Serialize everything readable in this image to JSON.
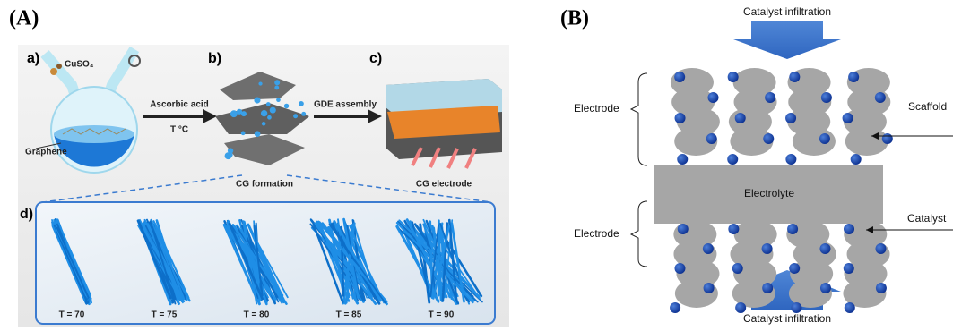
{
  "panel_a": {
    "label": "(A)",
    "steps": [
      {
        "label": "a)",
        "reagent": "CuSO₄",
        "material": "Graphene"
      },
      {
        "label": "b)",
        "caption": "CG formation"
      },
      {
        "label": "c)",
        "caption": "CG electrode"
      }
    ],
    "arrows": [
      {
        "top": "Ascorbic acid",
        "bottom": "T °C"
      },
      {
        "top": "GDE assembly"
      }
    ],
    "inset": {
      "label": "d)",
      "bundles": [
        "T = 70",
        "T = 75",
        "T = 80",
        "T = 85",
        "T = 90"
      ]
    }
  },
  "panel_b": {
    "label": "(B)",
    "top_arrow": "Catalyst infiltration",
    "bottom_arrow": "Catalyst infiltration",
    "electrode_top": "Electrode",
    "electrode_bottom": "Electrode",
    "electrolyte": "Electrolyte",
    "scaffold": "Scaffold",
    "catalyst": "Catalyst"
  }
}
